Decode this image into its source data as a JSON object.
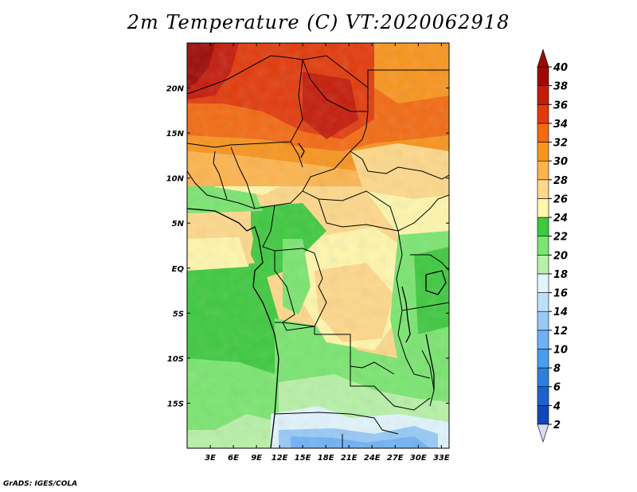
{
  "title": "2m Temperature (C) VT:2020062918",
  "credit": "GrADS: IGES/COLA",
  "map": {
    "lon_range": [
      0,
      34
    ],
    "lat_range": [
      -20,
      25
    ],
    "lon_ticks": [
      {
        "value": 3,
        "label": "3E"
      },
      {
        "value": 6,
        "label": "6E"
      },
      {
        "value": 9,
        "label": "9E"
      },
      {
        "value": 12,
        "label": "12E"
      },
      {
        "value": 15,
        "label": "15E"
      },
      {
        "value": 18,
        "label": "18E"
      },
      {
        "value": 21,
        "label": "21E"
      },
      {
        "value": 24,
        "label": "24E"
      },
      {
        "value": 27,
        "label": "27E"
      },
      {
        "value": 30,
        "label": "30E"
      },
      {
        "value": 33,
        "label": "33E"
      }
    ],
    "lat_ticks": [
      {
        "value": 20,
        "label": "20N"
      },
      {
        "value": 15,
        "label": "15N"
      },
      {
        "value": 10,
        "label": "10N"
      },
      {
        "value": 5,
        "label": "5N"
      },
      {
        "value": 0,
        "label": "EQ"
      },
      {
        "value": -5,
        "label": "5S"
      },
      {
        "value": -10,
        "label": "10S"
      },
      {
        "value": -15,
        "label": "15S"
      }
    ]
  },
  "colorbar": {
    "levels": [
      {
        "value": 2,
        "label": "2",
        "color": "#2a1a9a"
      },
      {
        "value": 4,
        "label": "4",
        "color": "#0f47b8"
      },
      {
        "value": 6,
        "label": "6",
        "color": "#1c62cc"
      },
      {
        "value": 8,
        "label": "8",
        "color": "#2e7fe0"
      },
      {
        "value": 10,
        "label": "10",
        "color": "#4b9bee"
      },
      {
        "value": 12,
        "label": "12",
        "color": "#6fb2f4"
      },
      {
        "value": 14,
        "label": "14",
        "color": "#96c9f7"
      },
      {
        "value": 16,
        "label": "16",
        "color": "#bde0fa"
      },
      {
        "value": 18,
        "label": "18",
        "color": "#e1f5fc"
      },
      {
        "value": 20,
        "label": "20",
        "color": "#b7f1a7"
      },
      {
        "value": 22,
        "label": "22",
        "color": "#7ae570"
      },
      {
        "value": 24,
        "label": "24",
        "color": "#3ec93f"
      },
      {
        "value": 26,
        "label": "26",
        "color": "#fff7ac"
      },
      {
        "value": 28,
        "label": "28",
        "color": "#fed88a"
      },
      {
        "value": 30,
        "label": "30",
        "color": "#fdb44e"
      },
      {
        "value": 32,
        "label": "32",
        "color": "#f8941d"
      },
      {
        "value": 34,
        "label": "34",
        "color": "#f36a12"
      },
      {
        "value": 36,
        "label": "36",
        "color": "#e23a0b"
      },
      {
        "value": 38,
        "label": "38",
        "color": "#c41b0a"
      },
      {
        "value": 40,
        "label": "40",
        "color": "#9c0a05"
      }
    ],
    "under_color": "#dcd9f5",
    "over_color": "#9c0a05"
  }
}
